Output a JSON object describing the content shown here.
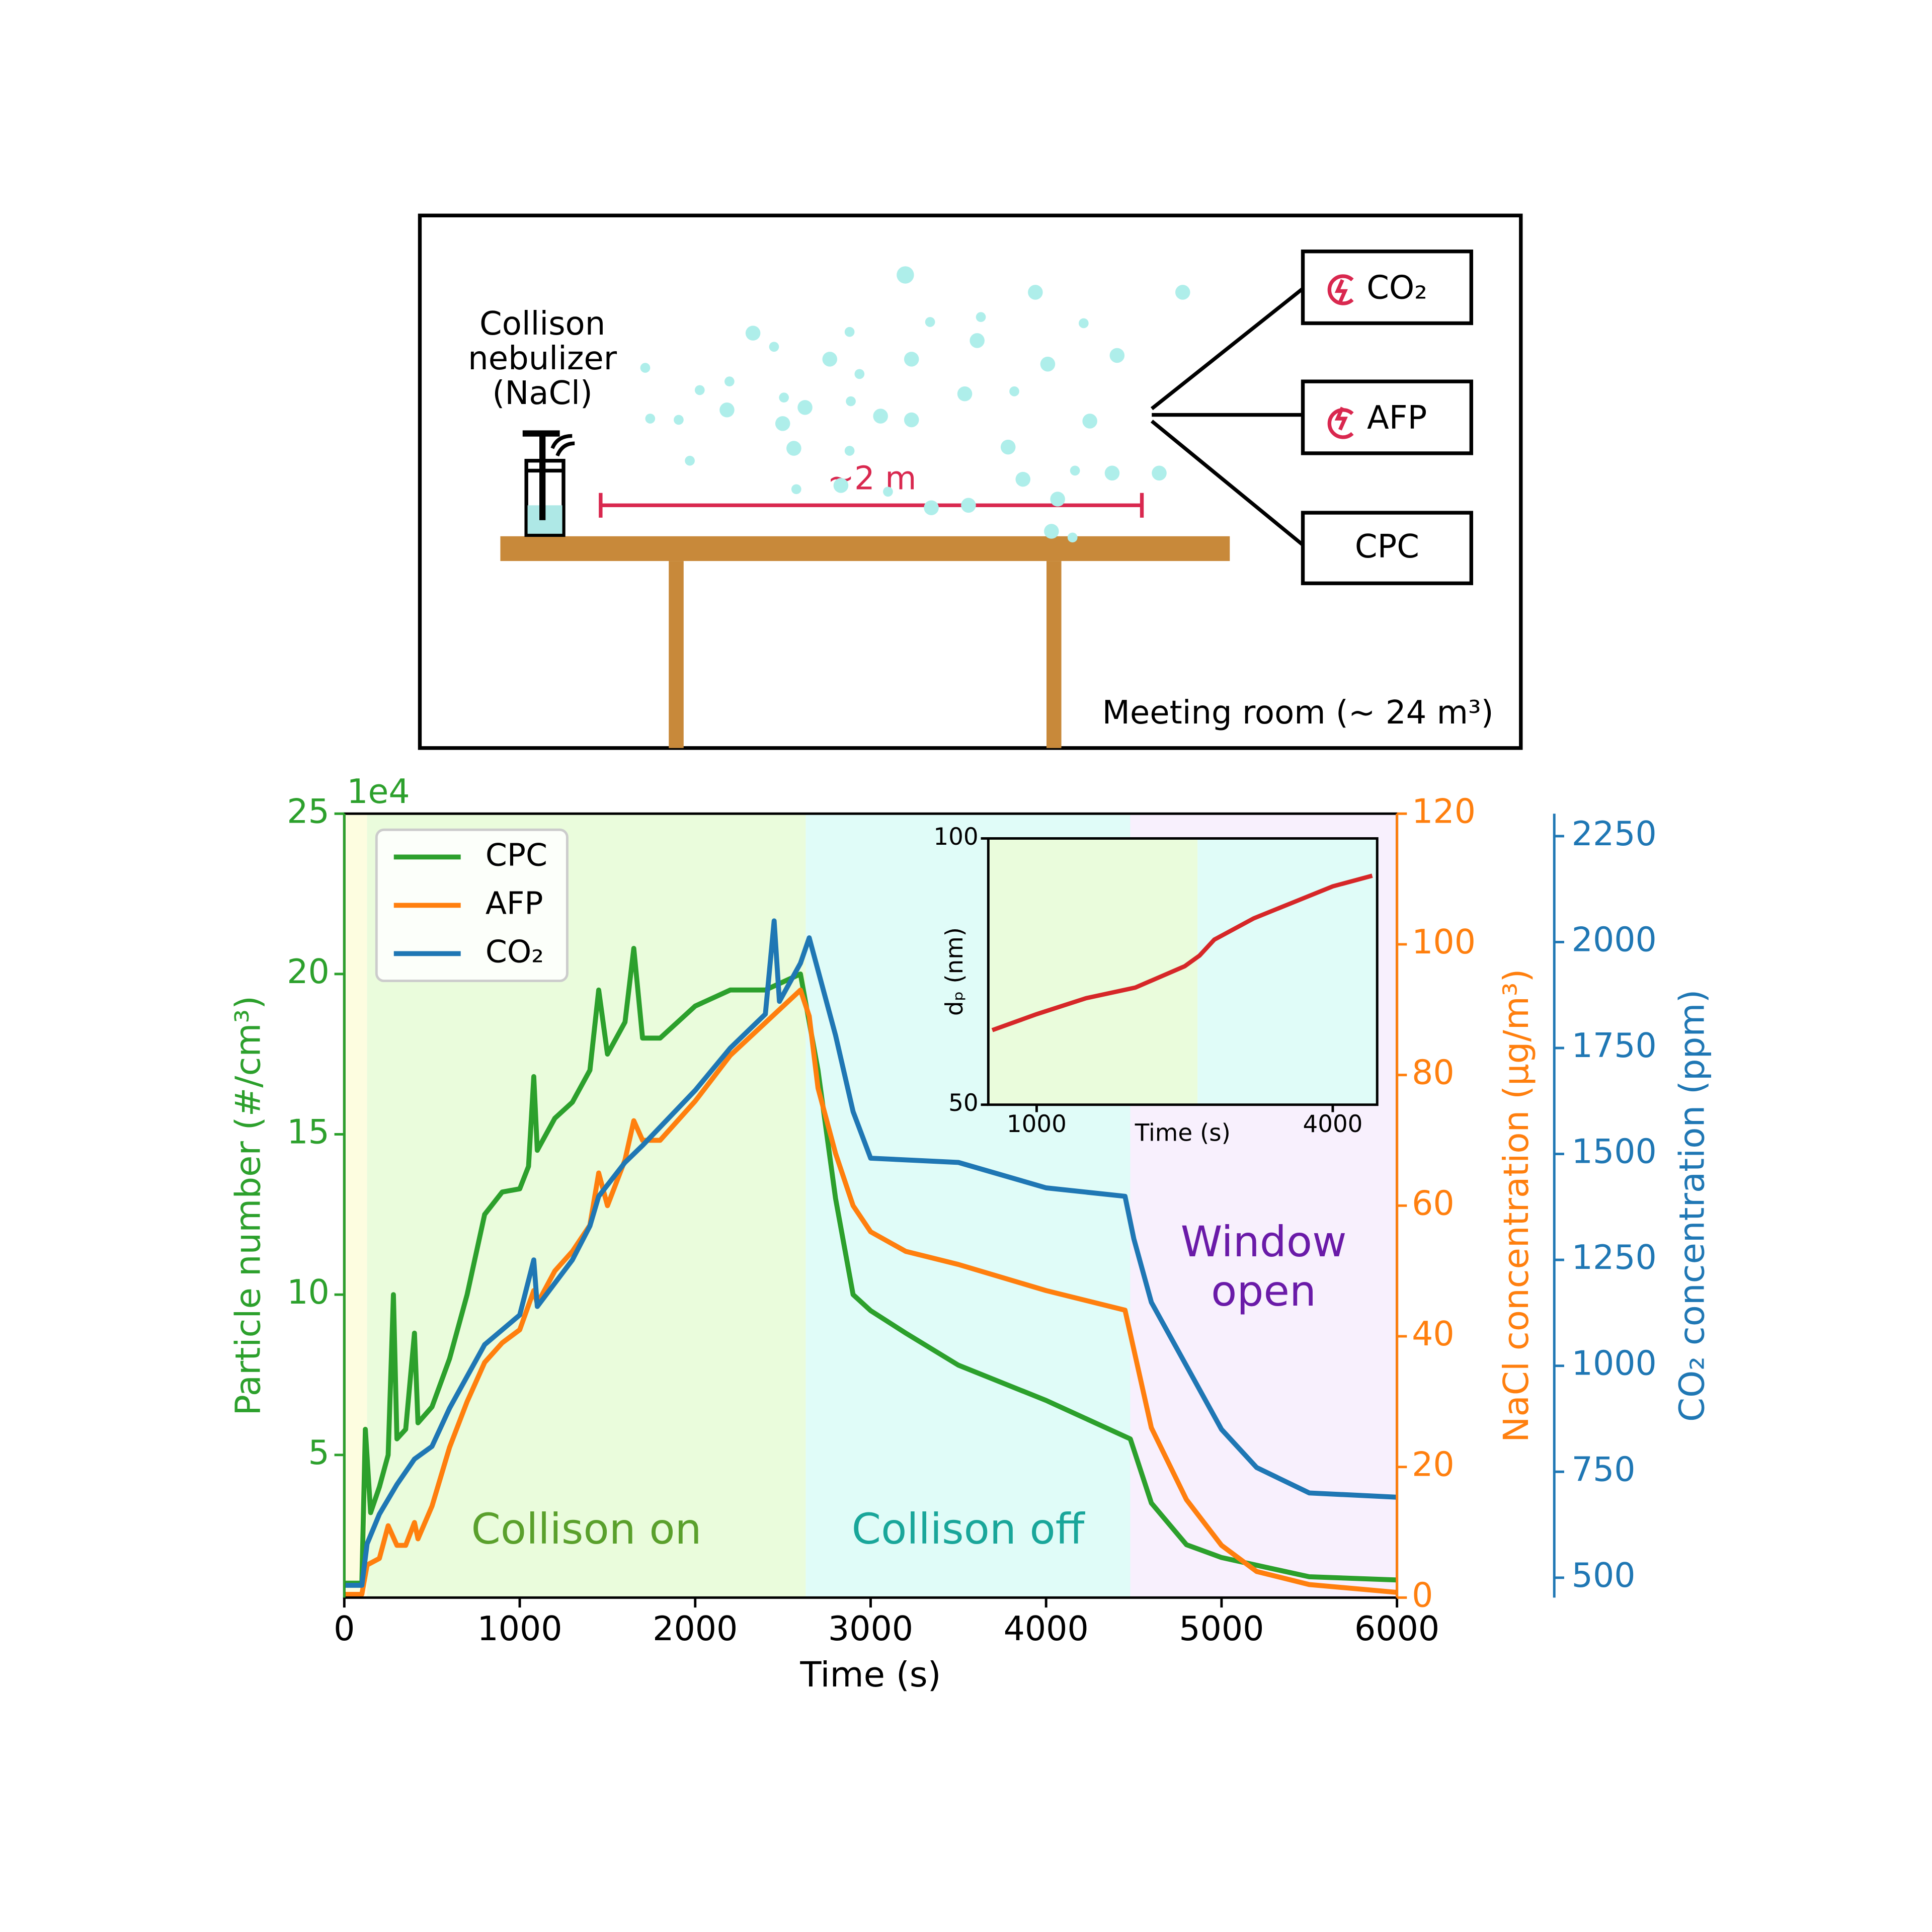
{
  "diagram": {
    "nebulizer_label": [
      "Collison",
      "nebulizer",
      "(NaCl)"
    ],
    "distance_label": "~2 m",
    "instruments": [
      "CO₂",
      "AFP",
      "CPC"
    ],
    "room_label": "Meeting room (~ 24 m³)"
  },
  "chart_data": {
    "type": "line",
    "xlabel": "Time (s)",
    "xlim": [
      0,
      6000
    ],
    "xticks": [
      0,
      1000,
      2000,
      3000,
      4000,
      5000,
      6000
    ],
    "ylabel": "Particle number (#/cm³)",
    "y_offset_label": "1e4",
    "ylim": [
      0.55,
      25
    ],
    "yticks": [
      5,
      10,
      15,
      20,
      25
    ],
    "ycolor": "#2ca02c",
    "y2label": "NaCl concentration (µg/m³)",
    "y2lim": [
      0,
      120
    ],
    "y2ticks": [
      0,
      20,
      40,
      60,
      80,
      100,
      120
    ],
    "y2color": "#ff7f0e",
    "y3label": "CO₂ concentration (ppm)",
    "y3lim": [
      453,
      2303
    ],
    "y3ticks": [
      500,
      750,
      1000,
      1250,
      1500,
      1750,
      2000,
      2250
    ],
    "y3color": "#1f77b4",
    "legend": "upper left",
    "regions": [
      {
        "xlim": [
          0,
          130
        ],
        "color": "#fdfde0"
      },
      {
        "xlim": [
          130,
          2630
        ],
        "color": "#eafcdc",
        "label_lines": [
          "Collison on"
        ],
        "label_color": "#5aa02c"
      },
      {
        "xlim": [
          2630,
          4480
        ],
        "color": "#e0fcf8",
        "label_lines": [
          "Collison off"
        ],
        "label_color": "#19a69a"
      },
      {
        "xlim": [
          4480,
          6000
        ],
        "color": "#f8f0fd",
        "label_lines": [
          "Window",
          "open"
        ],
        "label_color": "#6a1aa8"
      }
    ],
    "series": [
      {
        "name": "CPC",
        "color": "#2ca02c",
        "axis": "y",
        "x": [
          0,
          100,
          120,
          150,
          200,
          250,
          280,
          300,
          350,
          400,
          420,
          500,
          600,
          700,
          800,
          900,
          1000,
          1050,
          1080,
          1100,
          1200,
          1300,
          1400,
          1450,
          1500,
          1600,
          1650,
          1700,
          1800,
          1900,
          2000,
          2200,
          2400,
          2600,
          2700,
          2800,
          2900,
          3000,
          3200,
          3500,
          4000,
          4480,
          4600,
          4800,
          5000,
          5500,
          6000
        ],
        "values": [
          1,
          1,
          5.8,
          3.2,
          4,
          5,
          10,
          5.5,
          5.8,
          8.8,
          6,
          6.5,
          8,
          10,
          12.5,
          13.2,
          13.3,
          14,
          16.8,
          14.5,
          15.5,
          16,
          17,
          19.5,
          17.5,
          18.5,
          20.8,
          18,
          18,
          18.5,
          19,
          19.5,
          19.5,
          20,
          17,
          13,
          10,
          9.5,
          8.8,
          7.8,
          6.7,
          5.5,
          3.5,
          2.2,
          1.8,
          1.2,
          1.1
        ]
      },
      {
        "name": "AFP",
        "color": "#ff7f0e",
        "axis": "y2",
        "x": [
          0,
          100,
          130,
          200,
          250,
          300,
          350,
          400,
          420,
          500,
          600,
          700,
          800,
          900,
          1000,
          1080,
          1100,
          1200,
          1300,
          1400,
          1450,
          1500,
          1600,
          1650,
          1700,
          1800,
          2000,
          2200,
          2400,
          2600,
          2650,
          2700,
          2800,
          2900,
          3000,
          3200,
          3500,
          4000,
          4450,
          4500,
          4600,
          4800,
          5000,
          5200,
          5500,
          6000
        ],
        "values": [
          0.5,
          0.5,
          5,
          6,
          11,
          8,
          8,
          11.5,
          9,
          14,
          23,
          30,
          36,
          39,
          41,
          47,
          45,
          50,
          53,
          57,
          65,
          60,
          67,
          73,
          70,
          70,
          76,
          83,
          88,
          93,
          89,
          78,
          68,
          60,
          56,
          53,
          51,
          47,
          44,
          38,
          26,
          15,
          8,
          4,
          2,
          0.8
        ]
      },
      {
        "name": "CO₂",
        "color": "#1f77b4",
        "axis": "y3",
        "x": [
          0,
          100,
          130,
          200,
          300,
          400,
          500,
          600,
          800,
          1000,
          1080,
          1100,
          1300,
          1400,
          1450,
          1600,
          1700,
          2000,
          2200,
          2400,
          2450,
          2480,
          2600,
          2650,
          2800,
          2900,
          3000,
          3500,
          4000,
          4450,
          4500,
          4600,
          4800,
          5000,
          5200,
          5500,
          6000
        ],
        "values": [
          482,
          482,
          580,
          650,
          720,
          780,
          810,
          900,
          1050,
          1120,
          1250,
          1140,
          1250,
          1330,
          1400,
          1480,
          1520,
          1650,
          1750,
          1830,
          2050,
          1860,
          1950,
          2010,
          1780,
          1600,
          1490,
          1480,
          1420,
          1400,
          1300,
          1150,
          1000,
          850,
          760,
          700,
          690
        ]
      }
    ],
    "inset": {
      "type": "line",
      "xlabel": "Time (s)",
      "ylabel": "dₚ (nm)",
      "xlim": [
        510,
        4450
      ],
      "xticks": [
        1000,
        4000
      ],
      "ylim": [
        50,
        100
      ],
      "yticks": [
        50,
        100
      ],
      "regions": [
        {
          "xlim": [
            510,
            2630
          ],
          "color": "#eafcdc"
        },
        {
          "xlim": [
            2630,
            4450
          ],
          "color": "#e0fcf8"
        }
      ],
      "series": [
        {
          "color": "#d62728",
          "x": [
            550,
            1000,
            1500,
            2000,
            2500,
            2650,
            2800,
            3200,
            3600,
            4000,
            4400
          ],
          "values": [
            64,
            67,
            70,
            72,
            76,
            78,
            81,
            85,
            88,
            91,
            93
          ]
        }
      ]
    }
  }
}
